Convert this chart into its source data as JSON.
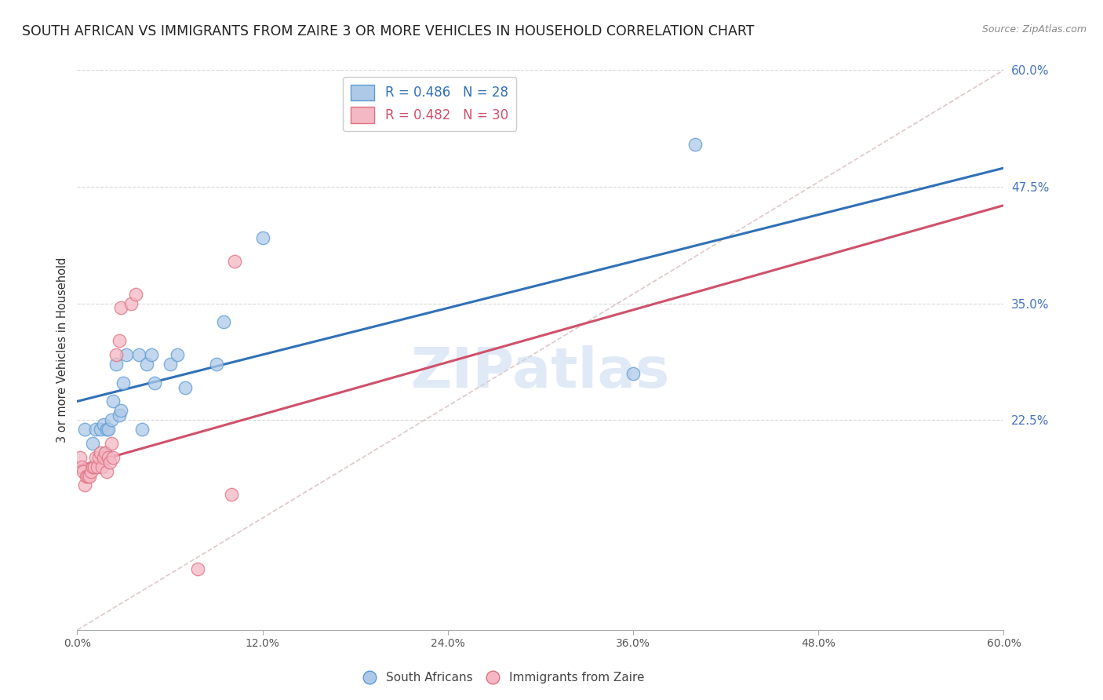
{
  "title": "SOUTH AFRICAN VS IMMIGRANTS FROM ZAIRE 3 OR MORE VEHICLES IN HOUSEHOLD CORRELATION CHART",
  "source": "Source: ZipAtlas.com",
  "ylabel": "3 or more Vehicles in Household",
  "xmin": 0.0,
  "xmax": 0.6,
  "ymin": 0.0,
  "ymax": 0.6,
  "right_ytick_labels": [
    "60.0%",
    "47.5%",
    "35.0%",
    "22.5%"
  ],
  "right_ytick_values": [
    0.6,
    0.475,
    0.35,
    0.225
  ],
  "xtick_vals": [
    0.0,
    0.12,
    0.24,
    0.36,
    0.48,
    0.6
  ],
  "xtick_labels": [
    "0.0%",
    "12.0%",
    "24.0%",
    "36.0%",
    "48.0%",
    "60.0%"
  ],
  "legend_blue_R": "R = 0.486",
  "legend_blue_N": "N = 28",
  "legend_pink_R": "R = 0.482",
  "legend_pink_N": "N = 30",
  "blue_fill": "#aec9e8",
  "blue_edge": "#5b9bd5",
  "pink_fill": "#f4b8c4",
  "pink_edge": "#e07080",
  "trendline_blue": "#3070b8",
  "trendline_pink": "#d0506a",
  "diag_color": "#d0b0b0",
  "grid_color": "#d8d8d8",
  "bg_color": "#ffffff",
  "title_color": "#222222",
  "right_label_color": "#4472c4",
  "bottom_label_color": "#555555",
  "watermark_color": "#c8d8f0",
  "blue_trend_y0": 0.245,
  "blue_trend_y1": 0.495,
  "pink_trend_y0": 0.175,
  "pink_trend_y1": 0.455,
  "blue_x": [
    0.005,
    0.01,
    0.012,
    0.015,
    0.017,
    0.018,
    0.019,
    0.02,
    0.022,
    0.023,
    0.025,
    0.027,
    0.028,
    0.03,
    0.032,
    0.04,
    0.042,
    0.045,
    0.048,
    0.05,
    0.06,
    0.065,
    0.07,
    0.09,
    0.095,
    0.12,
    0.36,
    0.4
  ],
  "blue_y": [
    0.215,
    0.2,
    0.215,
    0.215,
    0.22,
    0.19,
    0.215,
    0.215,
    0.225,
    0.245,
    0.285,
    0.23,
    0.235,
    0.265,
    0.295,
    0.295,
    0.215,
    0.285,
    0.295,
    0.265,
    0.285,
    0.295,
    0.26,
    0.285,
    0.33,
    0.42,
    0.275,
    0.52
  ],
  "pink_x": [
    0.002,
    0.003,
    0.004,
    0.005,
    0.006,
    0.007,
    0.008,
    0.009,
    0.01,
    0.011,
    0.012,
    0.013,
    0.014,
    0.015,
    0.016,
    0.017,
    0.018,
    0.019,
    0.02,
    0.021,
    0.022,
    0.023,
    0.025,
    0.027,
    0.028,
    0.035,
    0.038,
    0.078,
    0.1,
    0.102
  ],
  "pink_y": [
    0.185,
    0.175,
    0.17,
    0.155,
    0.165,
    0.165,
    0.165,
    0.17,
    0.175,
    0.175,
    0.185,
    0.175,
    0.185,
    0.19,
    0.175,
    0.185,
    0.19,
    0.17,
    0.185,
    0.18,
    0.2,
    0.185,
    0.295,
    0.31,
    0.345,
    0.35,
    0.36,
    0.065,
    0.145,
    0.395
  ]
}
